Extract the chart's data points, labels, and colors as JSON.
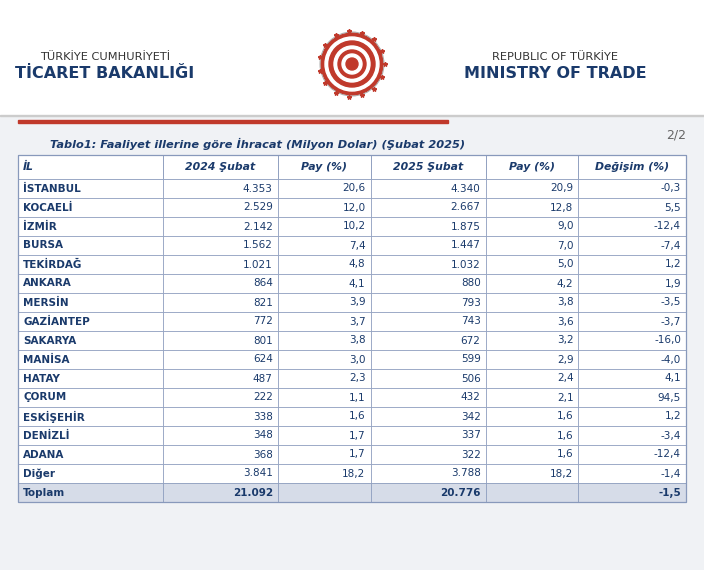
{
  "title": "Tablo1: Faaliyet illerine göre İhracat (Milyon Dolar) (Şubat 2025)",
  "columns": [
    "İL",
    "2024 Şubat",
    "Pay (%)",
    "2025 Şubat",
    "Pay (%)",
    "Değişim (%)"
  ],
  "rows": [
    [
      "İSTANBUL",
      "4.353",
      "20,6",
      "4.340",
      "20,9",
      "-0,3"
    ],
    [
      "KOCAELİ",
      "2.529",
      "12,0",
      "2.667",
      "12,8",
      "5,5"
    ],
    [
      "İZMİR",
      "2.142",
      "10,2",
      "1.875",
      "9,0",
      "-12,4"
    ],
    [
      "BURSA",
      "1.562",
      "7,4",
      "1.447",
      "7,0",
      "-7,4"
    ],
    [
      "TEKİRDAĞ",
      "1.021",
      "4,8",
      "1.032",
      "5,0",
      "1,2"
    ],
    [
      "ANKARA",
      "864",
      "4,1",
      "880",
      "4,2",
      "1,9"
    ],
    [
      "MERSİN",
      "821",
      "3,9",
      "793",
      "3,8",
      "-3,5"
    ],
    [
      "GAZİANTEP",
      "772",
      "3,7",
      "743",
      "3,6",
      "-3,7"
    ],
    [
      "SAKARYA",
      "801",
      "3,8",
      "672",
      "3,2",
      "-16,0"
    ],
    [
      "MANİSA",
      "624",
      "3,0",
      "599",
      "2,9",
      "-4,0"
    ],
    [
      "HATAY",
      "487",
      "2,3",
      "506",
      "2,4",
      "4,1"
    ],
    [
      "ÇORUM",
      "222",
      "1,1",
      "432",
      "2,1",
      "94,5"
    ],
    [
      "ESKİŞEHİR",
      "338",
      "1,6",
      "342",
      "1,6",
      "1,2"
    ],
    [
      "DENİZLİ",
      "348",
      "1,7",
      "337",
      "1,6",
      "-3,4"
    ],
    [
      "ADANA",
      "368",
      "1,7",
      "322",
      "1,6",
      "-12,4"
    ],
    [
      "Diğer",
      "3.841",
      "18,2",
      "3.788",
      "18,2",
      "-1,4"
    ],
    [
      "Toplam",
      "21.092",
      "",
      "20.776",
      "",
      "-1,5"
    ]
  ],
  "row_bg_white": "#ffffff",
  "row_bg_light": "#eef1f8",
  "total_bg": "#d6dce8",
  "border_color": "#8899bb",
  "title_color": "#1a3a6b",
  "page_number": "2/2",
  "header_line_color": "#c0392b",
  "bg_color": "#f0f2f5",
  "header_bg_color": "#ffffff",
  "logo_left_line1": "TÜRKİYE CUMHURİYETİ",
  "logo_left_line2": "TİCARET BAKANLIĞI",
  "logo_right_line1": "REPUBLIC OF TÜRKİYE",
  "logo_right_line2": "MINISTRY OF TRADE",
  "emblem_red": "#c0392b",
  "text_dark": "#1a3a6b",
  "text_gray": "#444444"
}
